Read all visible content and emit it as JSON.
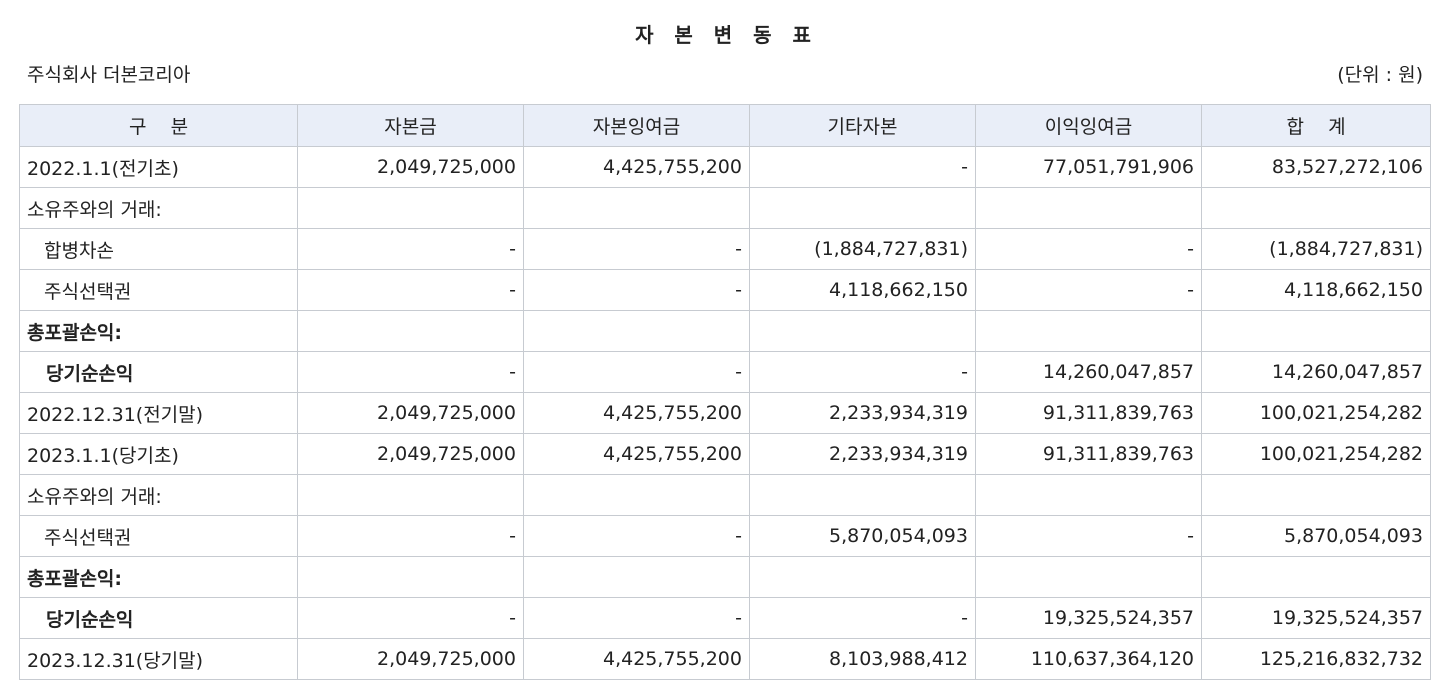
{
  "title": "자 본 변 동 표",
  "company": "주식회사 더본코리아",
  "unit": "(단위 : 원)",
  "columns": [
    "구    분",
    "자본금",
    "자본잉여금",
    "기타자본",
    "이익잉여금",
    "합    계"
  ],
  "rows": [
    {
      "label": "2022.1.1(전기초)",
      "indent": 0,
      "bold": false,
      "values": [
        "2,049,725,000",
        "4,425,755,200",
        "-",
        "77,051,791,906",
        "83,527,272,106"
      ]
    },
    {
      "label": "소유주와의 거래:",
      "indent": 0,
      "bold": false,
      "values": [
        "",
        "",
        "",
        "",
        ""
      ]
    },
    {
      "label": "합병차손",
      "indent": 1,
      "bold": false,
      "values": [
        "-",
        "-",
        "(1,884,727,831)",
        "-",
        "(1,884,727,831)"
      ]
    },
    {
      "label": "주식선택권",
      "indent": 1,
      "bold": false,
      "values": [
        "-",
        "-",
        "4,118,662,150",
        "-",
        "4,118,662,150"
      ]
    },
    {
      "label": "총포괄손익:",
      "indent": 0,
      "bold": true,
      "values": [
        "",
        "",
        "",
        "",
        ""
      ]
    },
    {
      "label": "당기순손익",
      "indent": 1,
      "bold": true,
      "values": [
        "-",
        "-",
        "-",
        "14,260,047,857",
        "14,260,047,857"
      ]
    },
    {
      "label": "2022.12.31(전기말)",
      "indent": 0,
      "bold": false,
      "values": [
        "2,049,725,000",
        "4,425,755,200",
        "2,233,934,319",
        "91,311,839,763",
        "100,021,254,282"
      ]
    },
    {
      "label": "2023.1.1(당기초)",
      "indent": 0,
      "bold": false,
      "values": [
        "2,049,725,000",
        "4,425,755,200",
        "2,233,934,319",
        "91,311,839,763",
        "100,021,254,282"
      ]
    },
    {
      "label": "소유주와의 거래:",
      "indent": 0,
      "bold": false,
      "values": [
        "",
        "",
        "",
        "",
        ""
      ]
    },
    {
      "label": "주식선택권",
      "indent": 1,
      "bold": false,
      "values": [
        "-",
        "-",
        "5,870,054,093",
        "-",
        "5,870,054,093"
      ]
    },
    {
      "label": "총포괄손익:",
      "indent": 0,
      "bold": true,
      "values": [
        "",
        "",
        "",
        "",
        ""
      ]
    },
    {
      "label": "당기순손익",
      "indent": 1,
      "bold": true,
      "values": [
        "-",
        "-",
        "-",
        "19,325,524,357",
        "19,325,524,357"
      ]
    },
    {
      "label": "2023.12.31(당기말)",
      "indent": 0,
      "bold": false,
      "values": [
        "2,049,725,000",
        "4,425,755,200",
        "8,103,988,412",
        "110,637,364,120",
        "125,216,832,732"
      ]
    }
  ]
}
